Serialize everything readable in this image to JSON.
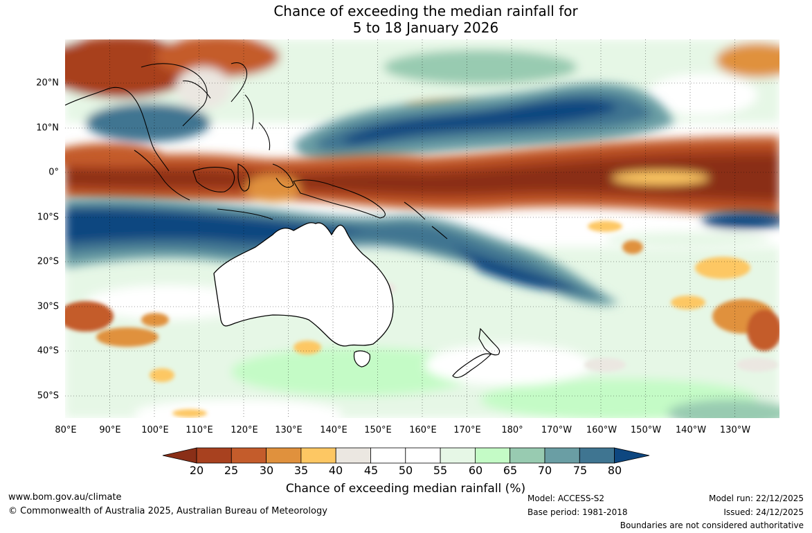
{
  "title": {
    "line1": "Chance of exceeding the median rainfall for",
    "line2": "5 to 18 January 2026"
  },
  "map": {
    "lat_labels": [
      "20°N",
      "10°N",
      "0°",
      "10°S",
      "20°S",
      "30°S",
      "40°S",
      "50°S"
    ],
    "lon_labels": [
      "80°E",
      "90°E",
      "100°E",
      "110°E",
      "120°E",
      "130°E",
      "140°E",
      "150°E",
      "160°E",
      "170°E",
      "180°",
      "170°W",
      "160°W",
      "150°W",
      "140°W",
      "130°W"
    ]
  },
  "legend": {
    "ticks": [
      "20",
      "25",
      "30",
      "35",
      "40",
      "45",
      "50",
      "55",
      "60",
      "65",
      "70",
      "75",
      "80"
    ],
    "colors": [
      "#8a2f17",
      "#a8411f",
      "#c45c2b",
      "#e0913d",
      "#fdc763",
      "#ebe7e1",
      "#ffffff",
      "#ffffff",
      "#e6f7e6",
      "#c4fbc6",
      "#98cbb1",
      "#6a9ea4",
      "#3f7591",
      "#0e4780"
    ],
    "label": "Chance of exceeding median rainfall (%)"
  },
  "footer": {
    "website": "www.bom.gov.au/climate",
    "copyright": "© Commonwealth of Australia 2025, Australian Bureau of Meteorology",
    "model": "Model: ACCESS-S2",
    "base_period": "Base period: 1981-2018",
    "model_run": "Model run: 22/12/2025",
    "issued": "Issued: 24/12/2025",
    "disclaimer": "Boundaries are not considered authoritative"
  }
}
